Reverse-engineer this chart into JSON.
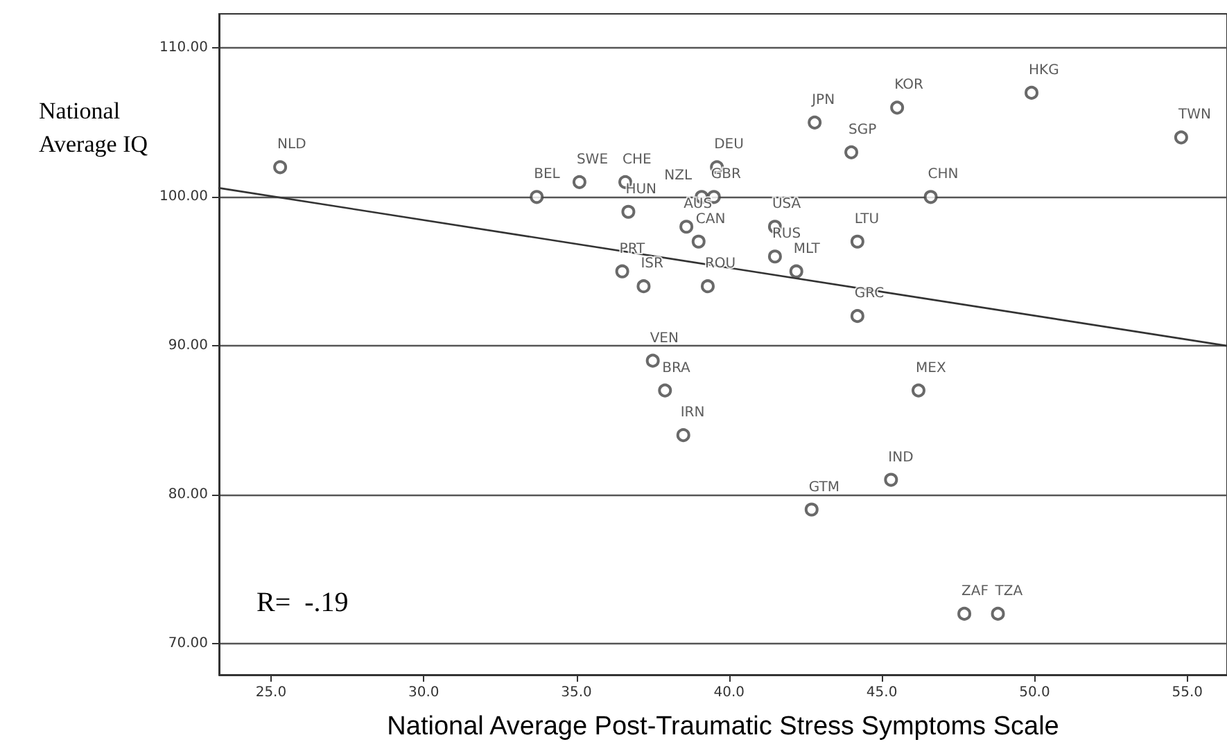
{
  "chart_data": {
    "type": "scatter",
    "xlabel": "National Average Post-Traumatic Stress Symptoms Scale",
    "ylabel": "National Average IQ",
    "annotations": [
      "R=  -.19"
    ],
    "xlim": [
      23.3,
      56.3
    ],
    "xticks": [
      {
        "value": 25,
        "label": "25.0"
      },
      {
        "value": 30,
        "label": "30.0"
      },
      {
        "value": 35,
        "label": "35.0"
      },
      {
        "value": 40,
        "label": "40.0"
      },
      {
        "value": 45,
        "label": "45.0"
      },
      {
        "value": 50,
        "label": "50.0"
      },
      {
        "value": 55,
        "label": "55.0"
      }
    ],
    "ylim": [
      67.9,
      112.3
    ],
    "yticks": [
      {
        "value": 70,
        "label": "70.00"
      },
      {
        "value": 80,
        "label": "80.00"
      },
      {
        "value": 90,
        "label": "90.00"
      },
      {
        "value": 100,
        "label": "100.00"
      },
      {
        "value": 110,
        "label": "110.00"
      }
    ],
    "grid": "y",
    "marker": "circle",
    "series": [
      {
        "color": "#444444",
        "x": [
          25.3,
          33.7,
          35.1,
          36.6,
          36.7,
          39.1,
          39.5,
          38.6,
          39.0,
          36.5,
          37.2,
          39.3,
          39.6,
          42.8,
          45.5,
          49.9,
          54.8,
          44.0,
          46.6,
          41.5,
          44.2,
          41.5,
          42.2,
          44.2,
          37.5,
          37.9,
          38.5,
          42.7,
          45.3,
          46.2,
          47.7,
          48.8
        ],
        "values": [
          102,
          100,
          101,
          101,
          99,
          100,
          100,
          98,
          97,
          95,
          94,
          94,
          102,
          105,
          106,
          107,
          104,
          103,
          100,
          98,
          97,
          96,
          95,
          92,
          89,
          87,
          84,
          79,
          81,
          87,
          72,
          72
        ],
        "value_labels": [
          "NLD",
          "BEL",
          "SWE",
          "CHE",
          "HUN",
          "NZL",
          "GBR",
          "AUS",
          "CAN",
          "PRT",
          "ISR",
          "ROU",
          "DEU",
          "JPN",
          "KOR",
          "HKG",
          "TWN",
          "SGP",
          "CHN",
          "USA",
          "LTU",
          "RUS",
          "MLT",
          "GRC",
          "VEN",
          "BRA",
          "IRN",
          "GTM",
          "IND",
          "MEX",
          "ZAF",
          "TZA"
        ]
      },
      {
        "type": "line",
        "color": "#333333",
        "marker": "none",
        "x": [
          23.3,
          56.3
        ],
        "values": [
          100.6,
          90.0
        ]
      }
    ]
  }
}
